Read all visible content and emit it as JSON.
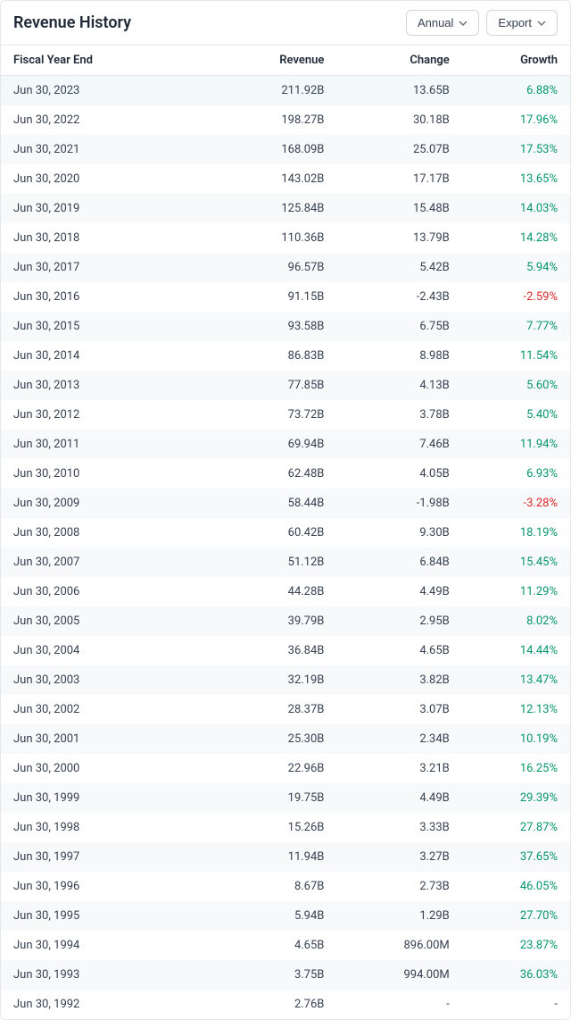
{
  "title": "Revenue History",
  "buttons": {
    "period": "Annual",
    "export": "Export"
  },
  "columns": {
    "date": "Fiscal Year End",
    "revenue": "Revenue",
    "change": "Change",
    "growth": "Growth"
  },
  "colors": {
    "positive": "#059669",
    "negative": "#dc2626",
    "row_odd": "#f7f9fa",
    "row_even": "#ffffff",
    "row_highlight": "#f1f9fb",
    "border": "#e5e7eb",
    "text": "#374151",
    "heading": "#1f2937"
  },
  "rows": [
    {
      "date": "Jun 30, 2023",
      "revenue": "211.92B",
      "change": "13.65B",
      "growth": "6.88%",
      "dir": "pos",
      "highlight": true
    },
    {
      "date": "Jun 30, 2022",
      "revenue": "198.27B",
      "change": "30.18B",
      "growth": "17.96%",
      "dir": "pos"
    },
    {
      "date": "Jun 30, 2021",
      "revenue": "168.09B",
      "change": "25.07B",
      "growth": "17.53%",
      "dir": "pos"
    },
    {
      "date": "Jun 30, 2020",
      "revenue": "143.02B",
      "change": "17.17B",
      "growth": "13.65%",
      "dir": "pos"
    },
    {
      "date": "Jun 30, 2019",
      "revenue": "125.84B",
      "change": "15.48B",
      "growth": "14.03%",
      "dir": "pos"
    },
    {
      "date": "Jun 30, 2018",
      "revenue": "110.36B",
      "change": "13.79B",
      "growth": "14.28%",
      "dir": "pos"
    },
    {
      "date": "Jun 30, 2017",
      "revenue": "96.57B",
      "change": "5.42B",
      "growth": "5.94%",
      "dir": "pos"
    },
    {
      "date": "Jun 30, 2016",
      "revenue": "91.15B",
      "change": "-2.43B",
      "growth": "-2.59%",
      "dir": "neg"
    },
    {
      "date": "Jun 30, 2015",
      "revenue": "93.58B",
      "change": "6.75B",
      "growth": "7.77%",
      "dir": "pos"
    },
    {
      "date": "Jun 30, 2014",
      "revenue": "86.83B",
      "change": "8.98B",
      "growth": "11.54%",
      "dir": "pos"
    },
    {
      "date": "Jun 30, 2013",
      "revenue": "77.85B",
      "change": "4.13B",
      "growth": "5.60%",
      "dir": "pos"
    },
    {
      "date": "Jun 30, 2012",
      "revenue": "73.72B",
      "change": "3.78B",
      "growth": "5.40%",
      "dir": "pos"
    },
    {
      "date": "Jun 30, 2011",
      "revenue": "69.94B",
      "change": "7.46B",
      "growth": "11.94%",
      "dir": "pos"
    },
    {
      "date": "Jun 30, 2010",
      "revenue": "62.48B",
      "change": "4.05B",
      "growth": "6.93%",
      "dir": "pos"
    },
    {
      "date": "Jun 30, 2009",
      "revenue": "58.44B",
      "change": "-1.98B",
      "growth": "-3.28%",
      "dir": "neg"
    },
    {
      "date": "Jun 30, 2008",
      "revenue": "60.42B",
      "change": "9.30B",
      "growth": "18.19%",
      "dir": "pos"
    },
    {
      "date": "Jun 30, 2007",
      "revenue": "51.12B",
      "change": "6.84B",
      "growth": "15.45%",
      "dir": "pos"
    },
    {
      "date": "Jun 30, 2006",
      "revenue": "44.28B",
      "change": "4.49B",
      "growth": "11.29%",
      "dir": "pos"
    },
    {
      "date": "Jun 30, 2005",
      "revenue": "39.79B",
      "change": "2.95B",
      "growth": "8.02%",
      "dir": "pos"
    },
    {
      "date": "Jun 30, 2004",
      "revenue": "36.84B",
      "change": "4.65B",
      "growth": "14.44%",
      "dir": "pos"
    },
    {
      "date": "Jun 30, 2003",
      "revenue": "32.19B",
      "change": "3.82B",
      "growth": "13.47%",
      "dir": "pos"
    },
    {
      "date": "Jun 30, 2002",
      "revenue": "28.37B",
      "change": "3.07B",
      "growth": "12.13%",
      "dir": "pos"
    },
    {
      "date": "Jun 30, 2001",
      "revenue": "25.30B",
      "change": "2.34B",
      "growth": "10.19%",
      "dir": "pos"
    },
    {
      "date": "Jun 30, 2000",
      "revenue": "22.96B",
      "change": "3.21B",
      "growth": "16.25%",
      "dir": "pos"
    },
    {
      "date": "Jun 30, 1999",
      "revenue": "19.75B",
      "change": "4.49B",
      "growth": "29.39%",
      "dir": "pos"
    },
    {
      "date": "Jun 30, 1998",
      "revenue": "15.26B",
      "change": "3.33B",
      "growth": "27.87%",
      "dir": "pos"
    },
    {
      "date": "Jun 30, 1997",
      "revenue": "11.94B",
      "change": "3.27B",
      "growth": "37.65%",
      "dir": "pos"
    },
    {
      "date": "Jun 30, 1996",
      "revenue": "8.67B",
      "change": "2.73B",
      "growth": "46.05%",
      "dir": "pos"
    },
    {
      "date": "Jun 30, 1995",
      "revenue": "5.94B",
      "change": "1.29B",
      "growth": "27.70%",
      "dir": "pos"
    },
    {
      "date": "Jun 30, 1994",
      "revenue": "4.65B",
      "change": "896.00M",
      "growth": "23.87%",
      "dir": "pos"
    },
    {
      "date": "Jun 30, 1993",
      "revenue": "3.75B",
      "change": "994.00M",
      "growth": "36.03%",
      "dir": "pos"
    },
    {
      "date": "Jun 30, 1992",
      "revenue": "2.76B",
      "change": "-",
      "growth": "-",
      "dir": "none"
    }
  ]
}
